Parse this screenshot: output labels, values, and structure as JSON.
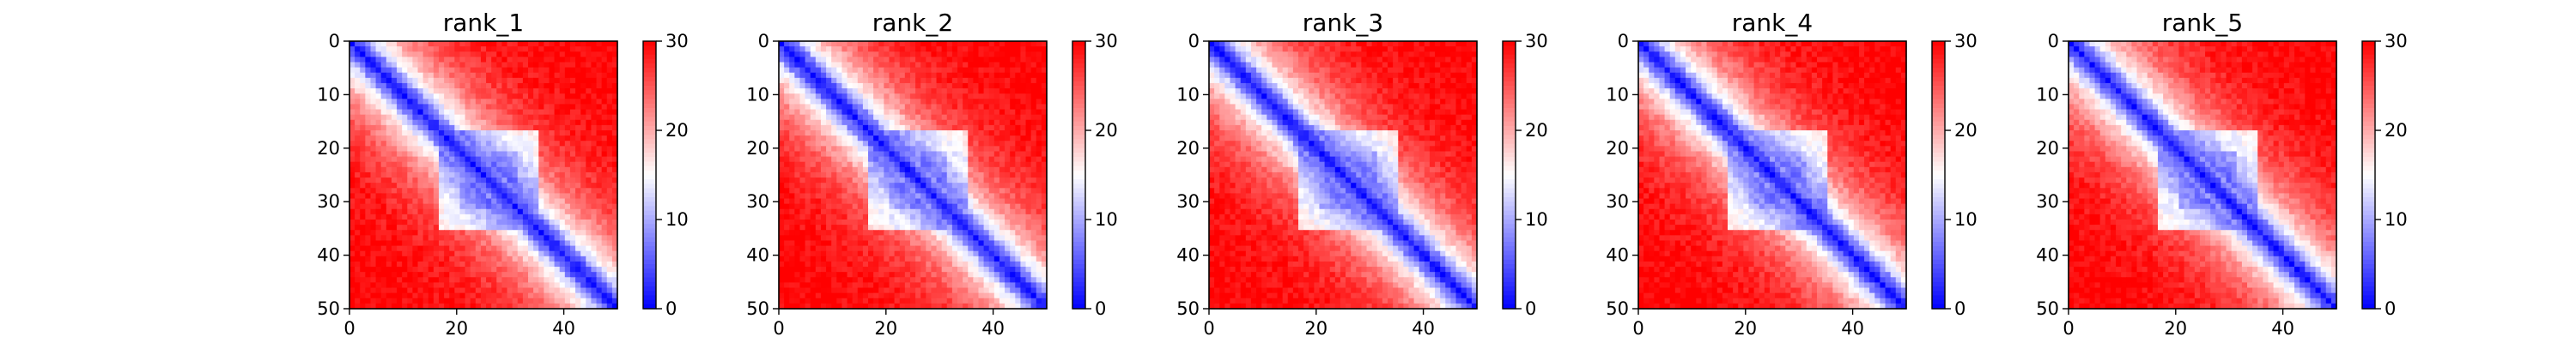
{
  "chart_data": [
    {
      "type": "heatmap",
      "title": "rank_1",
      "rows": 51,
      "cols": 51,
      "x_ticks": [
        0,
        20,
        40
      ],
      "y_ticks": [
        0,
        10,
        20,
        30,
        40,
        50
      ],
      "xlim": [
        0,
        50
      ],
      "ylim": [
        0,
        50
      ],
      "colorbar": {
        "min": 0,
        "max": 30,
        "ticks": [
          0,
          10,
          20,
          30
        ],
        "low_color": "#0000ff",
        "mid_color": "#ffffff",
        "high_color": "#ff0000"
      }
    },
    {
      "type": "heatmap",
      "title": "rank_2",
      "rows": 51,
      "cols": 51,
      "x_ticks": [
        0,
        20,
        40
      ],
      "y_ticks": [
        0,
        10,
        20,
        30,
        40,
        50
      ],
      "xlim": [
        0,
        50
      ],
      "ylim": [
        0,
        50
      ],
      "colorbar": {
        "min": 0,
        "max": 30,
        "ticks": [
          0,
          10,
          20,
          30
        ],
        "low_color": "#0000ff",
        "mid_color": "#ffffff",
        "high_color": "#ff0000"
      }
    },
    {
      "type": "heatmap",
      "title": "rank_3",
      "rows": 51,
      "cols": 51,
      "x_ticks": [
        0,
        20,
        40
      ],
      "y_ticks": [
        0,
        10,
        20,
        30,
        40,
        50
      ],
      "xlim": [
        0,
        50
      ],
      "ylim": [
        0,
        50
      ],
      "colorbar": {
        "min": 0,
        "max": 30,
        "ticks": [
          0,
          10,
          20,
          30
        ],
        "low_color": "#0000ff",
        "mid_color": "#ffffff",
        "high_color": "#ff0000"
      }
    },
    {
      "type": "heatmap",
      "title": "rank_4",
      "rows": 51,
      "cols": 51,
      "x_ticks": [
        0,
        20,
        40
      ],
      "y_ticks": [
        0,
        10,
        20,
        30,
        40,
        50
      ],
      "xlim": [
        0,
        50
      ],
      "ylim": [
        0,
        50
      ],
      "colorbar": {
        "min": 0,
        "max": 30,
        "ticks": [
          0,
          10,
          20,
          30
        ],
        "low_color": "#0000ff",
        "mid_color": "#ffffff",
        "high_color": "#ff0000"
      }
    },
    {
      "type": "heatmap",
      "title": "rank_5",
      "rows": 51,
      "cols": 51,
      "x_ticks": [
        0,
        20,
        40
      ],
      "y_ticks": [
        0,
        10,
        20,
        30,
        40,
        50
      ],
      "xlim": [
        0,
        50
      ],
      "ylim": [
        0,
        50
      ],
      "colorbar": {
        "min": 0,
        "max": 30,
        "ticks": [
          0,
          10,
          20,
          30
        ],
        "low_color": "#0000ff",
        "mid_color": "#ffffff",
        "high_color": "#ff0000"
      }
    }
  ]
}
